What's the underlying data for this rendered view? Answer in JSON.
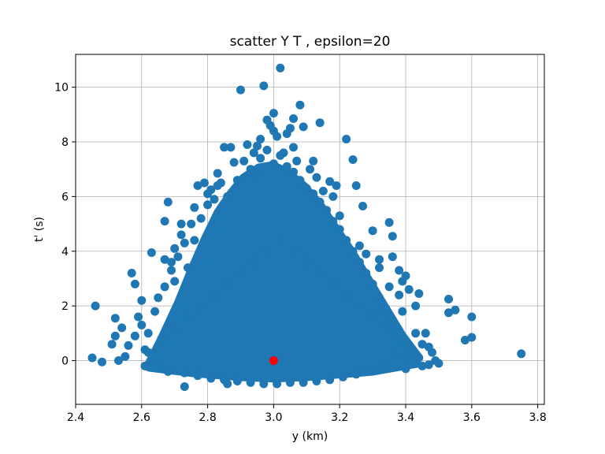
{
  "chart_data": {
    "type": "scatter",
    "title": "scatter Y T , epsilon=20",
    "xlabel": "y (km)",
    "ylabel": "t' (s)",
    "xlim": [
      2.4,
      3.82
    ],
    "ylim": [
      -1.6,
      11.2
    ],
    "x_ticks": [
      2.4,
      2.6,
      2.8,
      3.0,
      3.2,
      3.4,
      3.6,
      3.8
    ],
    "x_tick_labels": [
      "2.4",
      "2.6",
      "2.8",
      "3.0",
      "3.2",
      "3.4",
      "3.6",
      "3.8"
    ],
    "y_ticks": [
      0,
      2,
      4,
      6,
      8,
      10
    ],
    "y_tick_labels": [
      "0",
      "2",
      "4",
      "6",
      "8",
      "10"
    ],
    "grid": true,
    "colors": {
      "points": "#1f77b4",
      "highlight": "#ff0000",
      "grid": "#b0b0b0"
    },
    "series": [
      {
        "color": "#1f77b4",
        "points": [
          [
            2.46,
            2.0
          ],
          [
            2.45,
            0.1
          ],
          [
            2.48,
            -0.05
          ],
          [
            2.52,
            0.9
          ],
          [
            2.51,
            0.6
          ],
          [
            2.52,
            1.55
          ],
          [
            2.53,
            0.0
          ],
          [
            2.54,
            1.2
          ],
          [
            2.56,
            0.55
          ],
          [
            2.57,
            3.2
          ],
          [
            2.58,
            2.8
          ],
          [
            2.6,
            2.2
          ],
          [
            2.55,
            0.15
          ],
          [
            2.58,
            0.9
          ],
          [
            2.6,
            1.3
          ],
          [
            2.61,
            0.4
          ],
          [
            2.61,
            -0.2
          ],
          [
            2.63,
            3.95
          ],
          [
            2.67,
            5.1
          ],
          [
            2.68,
            5.8
          ],
          [
            2.67,
            3.7
          ],
          [
            2.69,
            3.6
          ],
          [
            2.7,
            4.1
          ],
          [
            2.72,
            4.6
          ],
          [
            2.73,
            -0.95
          ],
          [
            2.68,
            -0.4
          ],
          [
            2.72,
            5.0
          ],
          [
            2.76,
            5.6
          ],
          [
            2.77,
            6.4
          ],
          [
            2.79,
            6.5
          ],
          [
            2.81,
            6.25
          ],
          [
            2.83,
            6.85
          ],
          [
            2.85,
            7.8
          ],
          [
            2.87,
            7.8
          ],
          [
            2.88,
            7.25
          ],
          [
            2.9,
            9.9
          ],
          [
            2.92,
            7.9
          ],
          [
            2.95,
            7.85
          ],
          [
            2.97,
            10.05
          ],
          [
            2.98,
            8.8
          ],
          [
            2.99,
            8.6
          ],
          [
            3.0,
            9.05
          ],
          [
            3.02,
            10.7
          ],
          [
            3.01,
            8.2
          ],
          [
            3.03,
            7.6
          ],
          [
            3.05,
            8.5
          ],
          [
            3.06,
            8.85
          ],
          [
            3.07,
            7.3
          ],
          [
            3.08,
            9.35
          ],
          [
            3.09,
            8.55
          ],
          [
            3.12,
            7.3
          ],
          [
            3.14,
            8.7
          ],
          [
            3.17,
            6.55
          ],
          [
            3.22,
            8.1
          ],
          [
            3.24,
            7.35
          ],
          [
            3.25,
            6.4
          ],
          [
            3.27,
            5.65
          ],
          [
            3.3,
            4.75
          ],
          [
            3.32,
            3.4
          ],
          [
            3.35,
            2.7
          ],
          [
            3.36,
            3.8
          ],
          [
            3.38,
            3.3
          ],
          [
            3.39,
            2.9
          ],
          [
            3.38,
            2.4
          ],
          [
            3.4,
            3.1
          ],
          [
            3.41,
            2.6
          ],
          [
            3.43,
            2.0
          ],
          [
            3.44,
            2.45
          ],
          [
            3.46,
            1.0
          ],
          [
            3.48,
            0.3
          ],
          [
            3.5,
            -0.1
          ],
          [
            3.47,
            -0.15
          ],
          [
            3.53,
            2.25
          ],
          [
            3.53,
            1.75
          ],
          [
            3.55,
            1.85
          ],
          [
            3.58,
            0.75
          ],
          [
            3.6,
            1.6
          ],
          [
            3.6,
            0.85
          ],
          [
            3.75,
            0.25
          ],
          [
            3.35,
            5.05
          ],
          [
            3.36,
            4.55
          ],
          [
            3.32,
            3.7
          ],
          [
            2.65,
            2.3
          ],
          [
            2.64,
            1.8
          ],
          [
            2.7,
            2.9
          ],
          [
            2.74,
            3.4
          ],
          [
            2.76,
            4.4
          ],
          [
            2.78,
            5.2
          ],
          [
            2.8,
            5.7
          ],
          [
            2.82,
            5.9
          ],
          [
            2.84,
            6.5
          ],
          [
            2.86,
            6.0
          ],
          [
            2.89,
            6.6
          ],
          [
            2.91,
            7.3
          ],
          [
            2.93,
            7.0
          ],
          [
            2.95,
            6.8
          ],
          [
            2.96,
            7.4
          ],
          [
            2.98,
            7.7
          ],
          [
            3.0,
            7.2
          ],
          [
            3.02,
            7.5
          ],
          [
            3.04,
            7.1
          ],
          [
            3.06,
            6.9
          ],
          [
            3.08,
            6.6
          ],
          [
            3.1,
            6.3
          ],
          [
            3.12,
            6.1
          ],
          [
            3.14,
            5.8
          ],
          [
            3.16,
            5.5
          ],
          [
            3.18,
            5.1
          ],
          [
            3.2,
            4.8
          ],
          [
            3.22,
            4.4
          ],
          [
            3.24,
            4.0
          ],
          [
            3.26,
            3.6
          ],
          [
            3.28,
            3.2
          ],
          [
            3.3,
            2.8
          ],
          [
            3.32,
            2.3
          ],
          [
            3.34,
            1.9
          ],
          [
            3.36,
            1.5
          ],
          [
            3.38,
            1.1
          ],
          [
            3.4,
            0.7
          ],
          [
            3.42,
            0.4
          ],
          [
            3.44,
            0.1
          ],
          [
            3.45,
            0.6
          ],
          [
            3.43,
            1.0
          ],
          [
            3.37,
            0.2
          ],
          [
            3.33,
            -0.2
          ],
          [
            3.29,
            -0.35
          ],
          [
            3.25,
            -0.5
          ],
          [
            3.21,
            -0.6
          ],
          [
            3.17,
            -0.7
          ],
          [
            3.13,
            -0.75
          ],
          [
            3.09,
            -0.8
          ],
          [
            3.05,
            -0.8
          ],
          [
            3.01,
            -0.85
          ],
          [
            2.97,
            -0.85
          ],
          [
            2.93,
            -0.8
          ],
          [
            2.89,
            -0.75
          ],
          [
            2.85,
            -0.7
          ],
          [
            2.86,
            -0.85
          ],
          [
            2.81,
            -0.65
          ],
          [
            2.77,
            -0.55
          ],
          [
            2.73,
            -0.45
          ],
          [
            2.69,
            -0.3
          ],
          [
            2.65,
            -0.15
          ],
          [
            2.62,
            0.3
          ],
          [
            2.66,
            0.8
          ],
          [
            2.7,
            1.2
          ],
          [
            2.74,
            1.6
          ],
          [
            2.78,
            2.0
          ],
          [
            2.82,
            2.4
          ],
          [
            2.86,
            2.8
          ],
          [
            2.9,
            3.2
          ],
          [
            2.94,
            3.6
          ],
          [
            2.98,
            4.0
          ],
          [
            3.02,
            4.4
          ],
          [
            3.06,
            4.0
          ],
          [
            3.1,
            3.6
          ],
          [
            3.14,
            3.2
          ],
          [
            3.18,
            2.8
          ],
          [
            3.22,
            2.4
          ],
          [
            3.26,
            2.0
          ],
          [
            3.3,
            1.6
          ],
          [
            3.34,
            1.2
          ],
          [
            3.38,
            0.8
          ],
          [
            3.41,
            0.3
          ],
          [
            2.59,
            1.6
          ],
          [
            2.62,
            1.0
          ],
          [
            3.47,
            0.5
          ],
          [
            3.49,
            0.0
          ],
          [
            3.45,
            -0.2
          ],
          [
            3.4,
            -0.3
          ],
          [
            3.39,
            1.8
          ],
          [
            3.26,
            4.2
          ],
          [
            3.28,
            3.9
          ],
          [
            3.2,
            5.3
          ],
          [
            3.18,
            6.0
          ],
          [
            3.19,
            6.4
          ],
          [
            3.13,
            6.7
          ],
          [
            3.11,
            7.0
          ],
          [
            3.15,
            6.2
          ],
          [
            2.83,
            6.4
          ],
          [
            2.8,
            6.1
          ],
          [
            2.75,
            5.0
          ],
          [
            2.73,
            4.3
          ],
          [
            2.71,
            3.8
          ],
          [
            2.69,
            3.3
          ],
          [
            2.67,
            2.7
          ],
          [
            3.04,
            8.3
          ],
          [
            2.96,
            8.1
          ],
          [
            3.0,
            8.4
          ],
          [
            3.06,
            7.8
          ],
          [
            2.94,
            7.6
          ]
        ]
      }
    ],
    "highlight_points": [
      [
        3.0,
        0.0
      ]
    ]
  }
}
